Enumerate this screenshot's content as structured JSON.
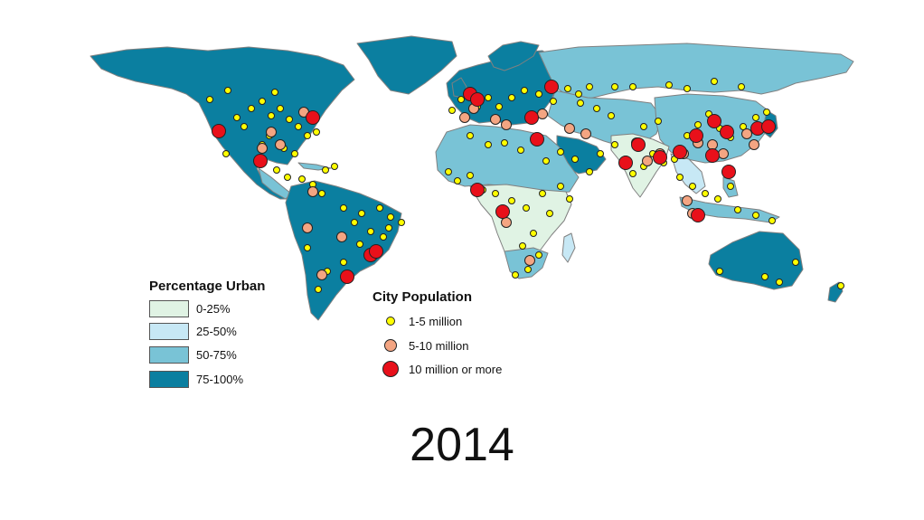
{
  "colors": {
    "ocean": "#ffffff",
    "border": "#808080",
    "urban_0_25": "#e0f3e4",
    "urban_25_50": "#c7e8f5",
    "urban_50_75": "#79c3d6",
    "urban_75_100": "#0b7fa0",
    "city_small": "#ffff00",
    "city_medium": "#f4a582",
    "city_large": "#e8101a"
  },
  "urban_legend": {
    "title": "Percentage Urban",
    "items": [
      {
        "label": "0-25%",
        "color": "#e0f3e4"
      },
      {
        "label": "25-50%",
        "color": "#c7e8f5"
      },
      {
        "label": "50-75%",
        "color": "#79c3d6"
      },
      {
        "label": "75-100%",
        "color": "#0b7fa0"
      }
    ]
  },
  "city_legend": {
    "title": "City Population",
    "items": [
      {
        "label": "1-5 million",
        "color": "#ffff00",
        "size": "small"
      },
      {
        "label": "5-10 million",
        "color": "#f4a582",
        "size": "medium"
      },
      {
        "label": "10 million or more",
        "color": "#e8101a",
        "size": "large"
      }
    ]
  },
  "year": "2014"
}
